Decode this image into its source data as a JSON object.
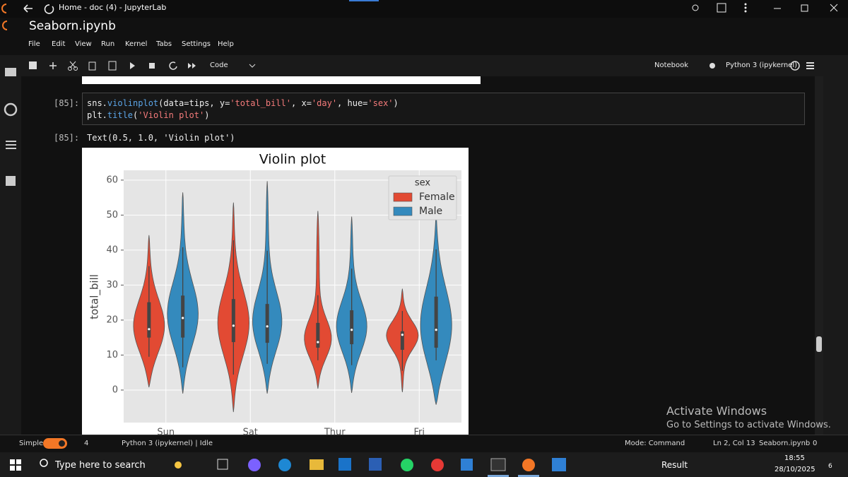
{
  "window": {
    "title": "Home - doc (4) - JupyterLab"
  },
  "notebook": {
    "name": "Seaborn.ipynb"
  },
  "menu": [
    "File",
    "Edit",
    "View",
    "Run",
    "Kernel",
    "Tabs",
    "Settings",
    "Help"
  ],
  "toolbar": {
    "cell_type": "Code",
    "notebook": "Notebook",
    "kernel": "Python 3 (ipykernel)"
  },
  "cell": {
    "prompt": "[85]:",
    "code": [
      [
        "sns.",
        "violinplot",
        "(data=tips, y=",
        "'total_bill'",
        ", x=",
        "'day'",
        ", hue=",
        "'sex'",
        ")"
      ],
      [
        "plt.",
        "title",
        "(",
        "'Violin plot'",
        ")"
      ]
    ],
    "output_prompt": "[85]:",
    "output_text": "Text(0.5, 1.0, 'Violin plot')"
  },
  "chart_data": {
    "type": "violin",
    "title": "Violin plot",
    "y_label": "total_bill",
    "categories": [
      "Sun",
      "Sat",
      "Thur",
      "Fri"
    ],
    "legend_title": "sex",
    "legend_position": "upper right",
    "ylim": [
      -9.3,
      62.8
    ],
    "yticks": [
      0,
      10,
      20,
      30,
      40,
      50,
      60
    ],
    "grid": true,
    "series": [
      {
        "name": "Female",
        "color": "#e24a33",
        "min": [
          0.8,
          -6.3,
          0.4,
          -0.6
        ],
        "max": [
          44.2,
          53.5,
          51.1,
          28.9
        ],
        "whisker_low": [
          9.5,
          4.4,
          8.5,
          5.5
        ],
        "whisker_high": [
          35.4,
          42.8,
          27.1,
          22.6
        ],
        "q1": [
          15.0,
          13.7,
          12.1,
          11.5
        ],
        "q3": [
          25.1,
          26.0,
          19.2,
          16.8
        ],
        "median": [
          17.4,
          18.4,
          13.7,
          15.8
        ]
      },
      {
        "name": "Male",
        "color": "#348abd",
        "min": [
          -1.0,
          -1.0,
          -0.8,
          -4.2
        ],
        "max": [
          56.4,
          59.6,
          49.5,
          49.9
        ],
        "whisker_low": [
          6.5,
          7.5,
          7.1,
          8.5
        ],
        "whisker_high": [
          40.8,
          39.8,
          34.7,
          40.2
        ],
        "q1": [
          15.0,
          13.5,
          13.1,
          12.1
        ],
        "q3": [
          27.0,
          24.6,
          22.8,
          26.7
        ],
        "median": [
          20.6,
          18.2,
          17.2,
          17.2
        ]
      }
    ]
  },
  "status": {
    "mode_switch": "Simple",
    "terminals": "4",
    "kernel_status": "Python 3 (ipykernel) | Idle",
    "mode": "Mode: Command",
    "cursor": "Ln 2, Col 13",
    "file": "Seaborn.ipynb",
    "notifications": "0"
  },
  "watermark": {
    "title": "Activate Windows",
    "text": "Go to Settings to activate Windows."
  },
  "taskbar": {
    "search": "Type here to search",
    "weather": "Result",
    "time": "18:55",
    "date": "28/10/2025",
    "badge": "6"
  }
}
